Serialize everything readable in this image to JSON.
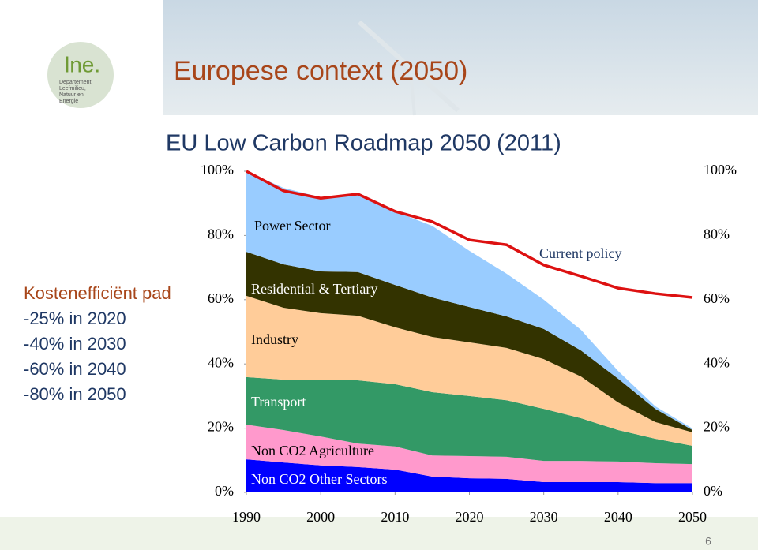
{
  "logo": {
    "mark": "lne.",
    "lines": [
      "Departement",
      "Leefmilieu,",
      "Natuur en",
      "Energie"
    ]
  },
  "header": {
    "title": "Europese context (2050)"
  },
  "sidebar": {
    "heading": "Kostenefficiënt pad",
    "items": [
      "-25% in 2020",
      "-40% in 2030",
      "-60% in 2040",
      "-80% in 2050"
    ]
  },
  "page_number": "6",
  "chart_data": {
    "type": "area",
    "title": "EU Low Carbon Roadmap 2050 (2011)",
    "x": [
      1990,
      1995,
      2000,
      2005,
      2010,
      2015,
      2020,
      2025,
      2030,
      2035,
      2040,
      2045,
      2050
    ],
    "xlim": [
      1990,
      2050
    ],
    "xticks": [
      1990,
      2000,
      2010,
      2020,
      2030,
      2040,
      2050
    ],
    "ylim": [
      0,
      100
    ],
    "yticks": [
      {
        "value": 0,
        "label": "0%"
      },
      {
        "value": 20,
        "label": "20%"
      },
      {
        "value": 40,
        "label": "40%"
      },
      {
        "value": 60,
        "label": "60%"
      },
      {
        "value": 80,
        "label": "80%"
      },
      {
        "value": 100,
        "label": "100%"
      }
    ],
    "stacked": true,
    "series": [
      {
        "name": "Non CO2 Other Sectors",
        "color": "#0000ff",
        "values": [
          10.3,
          9.3,
          8.4,
          7.9,
          7.1,
          4.9,
          4.4,
          4.2,
          3.2,
          3.2,
          3.2,
          2.9,
          2.9
        ]
      },
      {
        "name": "Non CO2 Agriculture",
        "color": "#ff99cc",
        "values": [
          10.8,
          10.1,
          9.0,
          7.3,
          7.2,
          6.6,
          6.9,
          6.9,
          6.6,
          6.6,
          6.4,
          6.2,
          5.9
        ]
      },
      {
        "name": "Transport",
        "color": "#339966",
        "values": [
          14.8,
          15.7,
          17.7,
          19.7,
          19.4,
          19.7,
          18.7,
          17.6,
          16.2,
          13.3,
          9.8,
          7.6,
          5.7
        ]
      },
      {
        "name": "Industry",
        "color": "#ffcc99",
        "values": [
          25.3,
          22.4,
          20.7,
          20.1,
          17.7,
          17.2,
          16.7,
          16.3,
          15.5,
          13.0,
          8.6,
          5.2,
          4.2
        ]
      },
      {
        "name": "Residential & Tertiary",
        "color": "#333300",
        "values": [
          13.7,
          13.5,
          13.0,
          13.6,
          13.2,
          12.3,
          11.0,
          9.8,
          9.4,
          8.1,
          7.4,
          4.1,
          0.7
        ]
      },
      {
        "name": "Power Sector",
        "color": "#99ccff",
        "values": [
          25.1,
          23.8,
          23.1,
          24.3,
          22.9,
          22.3,
          17.5,
          13.3,
          9.1,
          6.4,
          2.4,
          0.8,
          0.5
        ]
      }
    ],
    "current_policy": {
      "name": "Current policy",
      "color": "#dd1111",
      "values": [
        100,
        93.9,
        91.6,
        92.9,
        87.5,
        84.3,
        78.6,
        77.1,
        70.8,
        67.3,
        63.6,
        61.9,
        60.7
      ]
    }
  }
}
